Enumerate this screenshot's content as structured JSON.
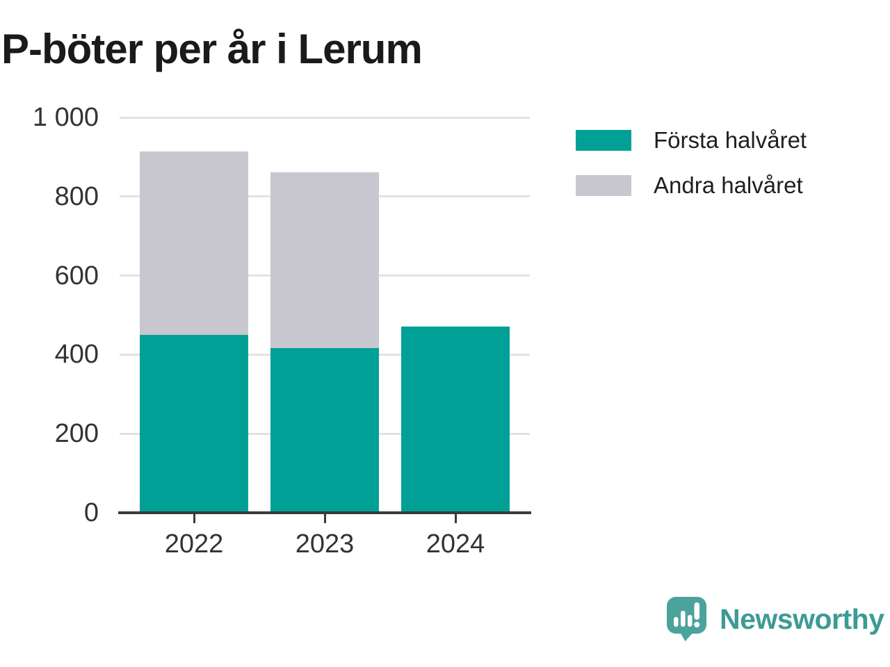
{
  "title": "P-böter per år i Lerum",
  "chart_data": {
    "type": "bar",
    "stacked": true,
    "title": "P-böter per år i Lerum",
    "categories": [
      "2022",
      "2023",
      "2024"
    ],
    "series": [
      {
        "name": "Första halvåret",
        "color": "#00A096",
        "values": [
          450,
          417,
          471
        ]
      },
      {
        "name": "Andra halvåret",
        "color": "#C8C6CE",
        "values": [
          464,
          445,
          0
        ]
      }
    ],
    "ylim": [
      0,
      1000
    ],
    "yticks": [
      0,
      200,
      400,
      600,
      800,
      1000
    ],
    "ytick_labels": [
      "0",
      "200",
      "400",
      "600",
      "800",
      "1 000"
    ],
    "xlabel": "",
    "ylabel": "",
    "grid": true,
    "legend_position": "top-right"
  },
  "legend": {
    "items": [
      {
        "label": "Första halvåret",
        "color": "#00A096"
      },
      {
        "label": "Andra halvåret",
        "color": "#C8C6CE"
      }
    ]
  },
  "branding": {
    "wordmark": "Newsworthy",
    "icon_color": "#4BA39D",
    "wordmark_color": "#3C9B94"
  },
  "colors": {
    "title": "#1A1A1A",
    "tick_labels": "#333333",
    "gridline": "#E2E2E2",
    "axis": "#3A3A3A",
    "background": "#FFFFFF"
  }
}
